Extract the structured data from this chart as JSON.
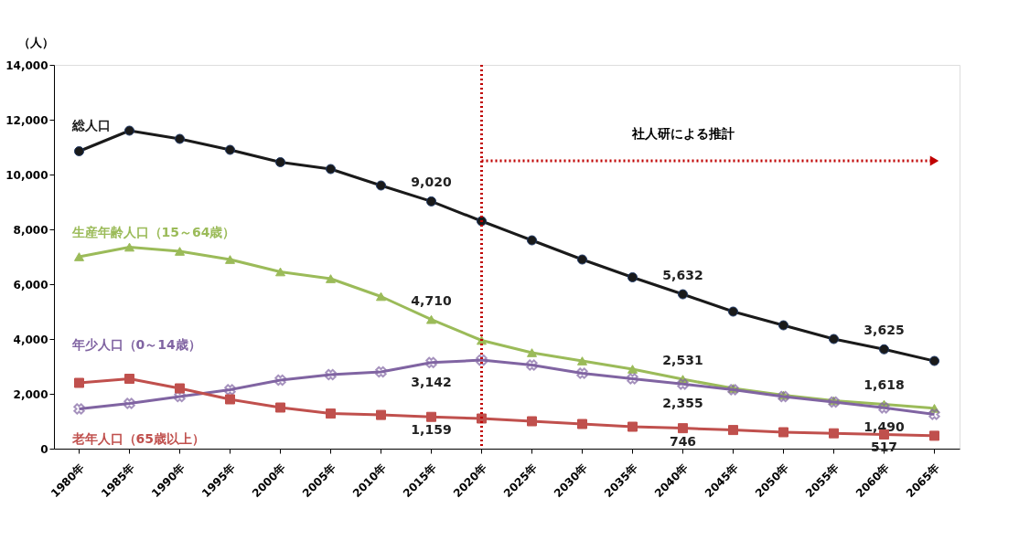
{
  "chart_data": {
    "type": "line",
    "ylabel": "（人）",
    "categories": [
      "1980年",
      "1985年",
      "1990年",
      "1995年",
      "2000年",
      "2005年",
      "2010年",
      "2015年",
      "2020年",
      "2025年",
      "2030年",
      "2035年",
      "2040年",
      "2045年",
      "2050年",
      "2055年",
      "2060年",
      "2065年"
    ],
    "ylim": [
      0,
      14000
    ],
    "yticks": [
      {
        "value": 0,
        "label": "0"
      },
      {
        "value": 2000,
        "label": "2,000"
      },
      {
        "value": 4000,
        "label": "4,000"
      },
      {
        "value": 6000,
        "label": "6,000"
      },
      {
        "value": 8000,
        "label": "8,000"
      },
      {
        "value": 10000,
        "label": "10,000"
      },
      {
        "value": 12000,
        "label": "12,000"
      },
      {
        "value": 14000,
        "label": "14,000"
      }
    ],
    "grid": false,
    "series": [
      {
        "name": "総人口",
        "color": "#1a1a1a",
        "marker": "circle",
        "values": [
          10850,
          11600,
          11300,
          10900,
          10450,
          10200,
          9600,
          9020,
          8300,
          7600,
          6900,
          6250,
          5632,
          5000,
          4500,
          4000,
          3625,
          3200
        ],
        "value_labels": [
          null,
          null,
          null,
          null,
          null,
          null,
          null,
          "9,020",
          null,
          null,
          null,
          null,
          "5,632",
          null,
          null,
          null,
          "3,625",
          null
        ]
      },
      {
        "name": "生産年齢人口（15～64歳）",
        "color": "#9bbb59",
        "marker": "triangle",
        "values": [
          7000,
          7350,
          7200,
          6900,
          6450,
          6200,
          5550,
          4710,
          3950,
          3500,
          3200,
          2900,
          2531,
          2200,
          1950,
          1750,
          1618,
          1470
        ],
        "value_labels": [
          null,
          null,
          null,
          null,
          null,
          null,
          null,
          "4,710",
          null,
          null,
          null,
          null,
          "2,531",
          null,
          null,
          null,
          "1,618",
          null
        ]
      },
      {
        "name": "年少人口（0～14歳）",
        "color": "#8064a2",
        "marker": "cross",
        "values": [
          1450,
          1650,
          1900,
          2150,
          2500,
          2700,
          2800,
          3142,
          3230,
          3050,
          2750,
          2550,
          2355,
          2150,
          1900,
          1700,
          1490,
          1250
        ],
        "value_labels": [
          null,
          null,
          null,
          null,
          null,
          null,
          null,
          "3,142",
          null,
          null,
          null,
          null,
          "2,355",
          null,
          null,
          null,
          "1,490",
          null
        ]
      },
      {
        "name": "老年人口（65歳以上）",
        "color": "#c0504d",
        "marker": "square",
        "values": [
          2400,
          2550,
          2200,
          1800,
          1500,
          1280,
          1230,
          1159,
          1100,
          1000,
          900,
          800,
          746,
          680,
          600,
          560,
          517,
          470
        ],
        "value_labels": [
          null,
          null,
          null,
          null,
          null,
          null,
          null,
          "1,159",
          null,
          null,
          null,
          null,
          "746",
          null,
          null,
          null,
          "517",
          null
        ]
      }
    ],
    "ref_lines": [
      {
        "axis": "x",
        "value": "2020年",
        "color": "#c00000",
        "line_style": "dotted"
      }
    ],
    "annotations": [
      "社人研による推計"
    ]
  }
}
